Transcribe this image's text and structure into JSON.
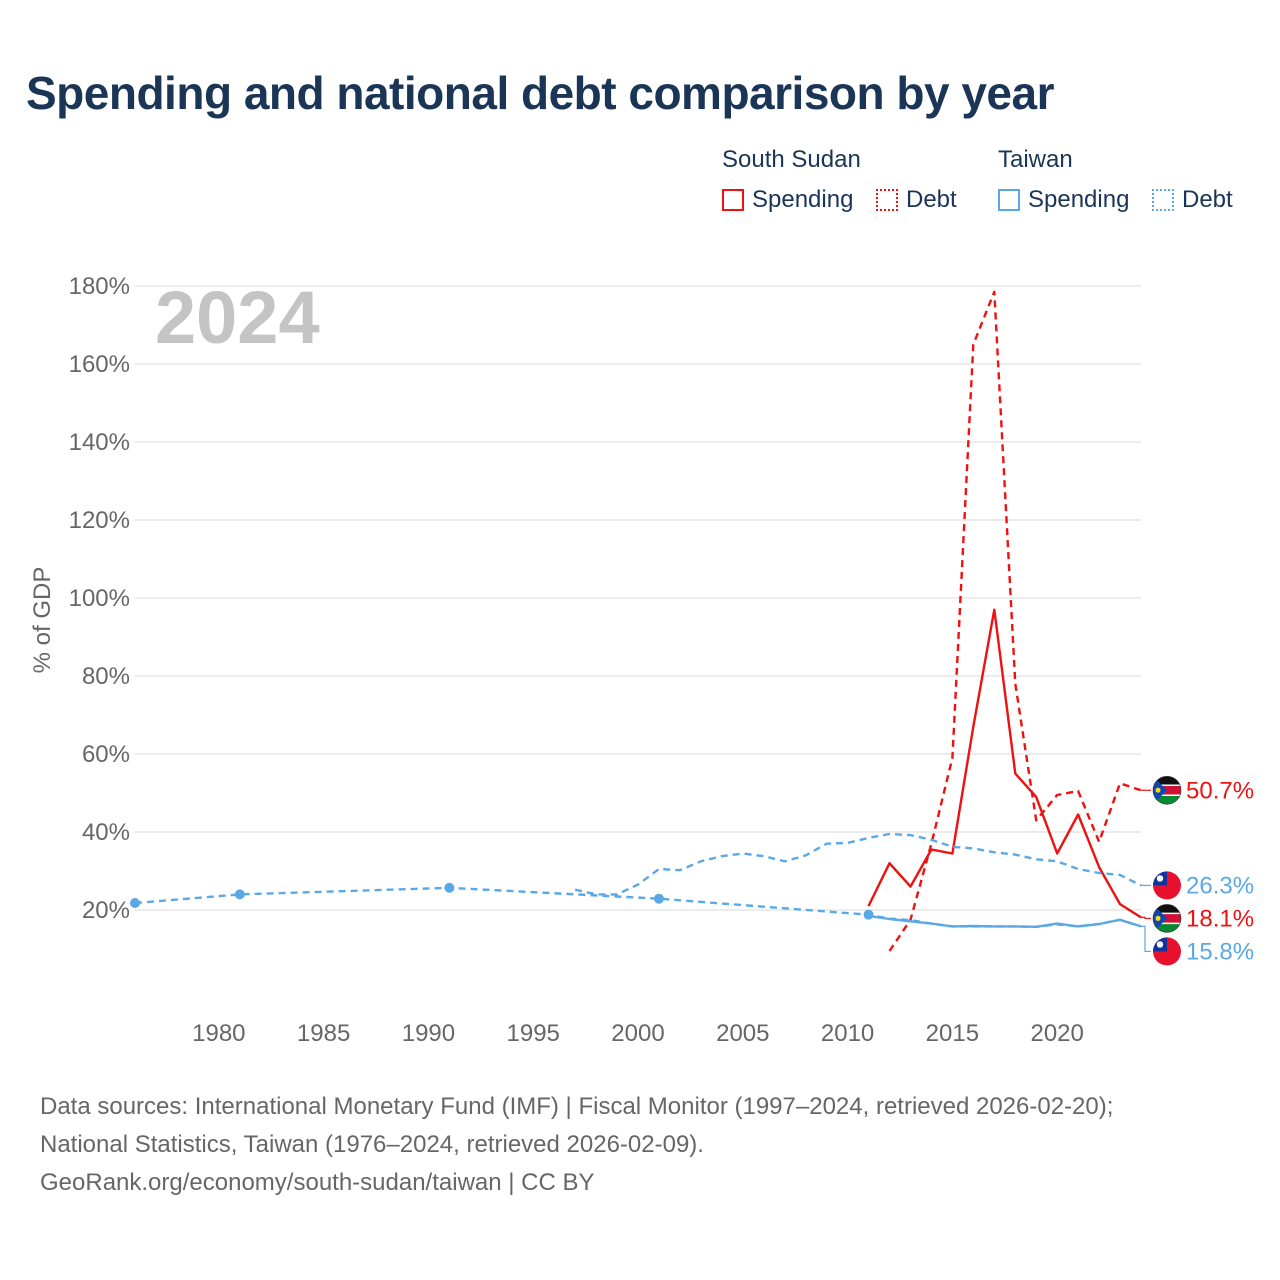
{
  "title": "Spending and national debt comparison by year",
  "legend": {
    "groups": [
      {
        "name": "South Sudan",
        "color": "#ee1111",
        "spending_label": "Spending",
        "debt_label": "Debt"
      },
      {
        "name": "Taiwan",
        "color": "#5ba8e6",
        "spending_label": "Spending",
        "debt_label": "Debt"
      }
    ]
  },
  "chart_data": {
    "type": "line",
    "title": "Spending and national debt comparison by year",
    "year_label": "2024",
    "ylabel": "% of GDP",
    "xlabel": "",
    "xlim": [
      1976,
      2024
    ],
    "ylim": [
      0,
      180
    ],
    "x_ticks": [
      1980,
      1985,
      1990,
      1995,
      2000,
      2005,
      2010,
      2015,
      2020
    ],
    "y_ticks": [
      20,
      40,
      60,
      80,
      100,
      120,
      140,
      160,
      180
    ],
    "y_tick_suffix": "%",
    "grid": true,
    "series": [
      {
        "name": "South Sudan Spending",
        "country": "South Sudan",
        "measure": "Spending",
        "color": "#ee1111",
        "style": "solid",
        "x": [
          2011,
          2012,
          2013,
          2014,
          2015,
          2016,
          2017,
          2018,
          2019,
          2020,
          2021,
          2022,
          2023,
          2024
        ],
        "values": [
          21,
          32,
          26,
          35.5,
          34.5,
          67,
          97,
          55,
          49,
          34.5,
          44.5,
          31,
          21.5,
          18.1
        ],
        "end_label": "18.1%"
      },
      {
        "name": "South Sudan Debt",
        "country": "South Sudan",
        "measure": "Debt",
        "color": "#ee1111",
        "style": "dashed",
        "x": [
          2012,
          2013,
          2014,
          2015,
          2016,
          2017,
          2018,
          2019,
          2020,
          2021,
          2022,
          2023,
          2024
        ],
        "values": [
          9.5,
          17.5,
          37,
          59,
          165,
          178.5,
          78,
          43,
          49.5,
          50.5,
          37.5,
          52.5,
          50.7
        ],
        "end_label": "50.7%"
      },
      {
        "name": "Taiwan Spending",
        "country": "Taiwan",
        "measure": "Spending",
        "color": "#5ba8e6",
        "style": "solid",
        "x": [
          2011,
          2012,
          2013,
          2014,
          2015,
          2016,
          2017,
          2018,
          2019,
          2020,
          2021,
          2022,
          2023,
          2024
        ],
        "values": [
          18.5,
          17.7,
          17.1,
          16.5,
          15.8,
          15.9,
          15.8,
          15.8,
          15.7,
          16.5,
          15.8,
          16.4,
          17.5,
          15.8
        ],
        "end_label": "15.8%"
      },
      {
        "name": "Taiwan Debt",
        "country": "Taiwan",
        "measure": "Debt",
        "color": "#5ba8e6",
        "style": "dashed",
        "x": [
          1976,
          1981,
          1991,
          2001,
          2011,
          2012,
          2013,
          2014,
          2015,
          2016,
          2017,
          2018,
          2019,
          2020,
          2021,
          2022,
          2023,
          2024
        ],
        "values": [
          21.8,
          24,
          25.7,
          22.9,
          18.8,
          17.8,
          17.4,
          16.5,
          15.8,
          15.8,
          15.8,
          15.8,
          15.7,
          16.3,
          15.8,
          16.4,
          17.5,
          15.8
        ],
        "markers_x": [
          1976,
          1981,
          1991,
          2001,
          2011
        ],
        "end_label": ""
      },
      {
        "name": "Taiwan Debt (IMF)",
        "country": "Taiwan",
        "measure": "Debt",
        "color": "#5ba8e6",
        "style": "dashed",
        "x": [
          1997,
          1998,
          1999,
          2000,
          2001,
          2002,
          2003,
          2004,
          2005,
          2006,
          2007,
          2008,
          2009,
          2010,
          2011,
          2012,
          2013,
          2014,
          2015,
          2016,
          2017,
          2018,
          2019,
          2020,
          2021,
          2022,
          2023,
          2024
        ],
        "values": [
          25.2,
          24,
          24,
          26.5,
          30.5,
          30.2,
          32.5,
          33.8,
          34.5,
          33.8,
          32.5,
          34,
          37,
          37.2,
          38.5,
          39.5,
          39.2,
          38,
          36.2,
          35.8,
          34.8,
          34.2,
          33,
          32.5,
          30.5,
          29.5,
          29,
          26.3
        ],
        "end_label": "26.3%"
      }
    ]
  },
  "footer": {
    "line1": "Data sources: International Monetary Fund (IMF) | Fiscal Monitor (1997–2024, retrieved 2026-02-20);",
    "line2": "National Statistics, Taiwan (1976–2024, retrieved 2026-02-09).",
    "line3": "GeoRank.org/economy/south-sudan/taiwan | CC BY"
  }
}
